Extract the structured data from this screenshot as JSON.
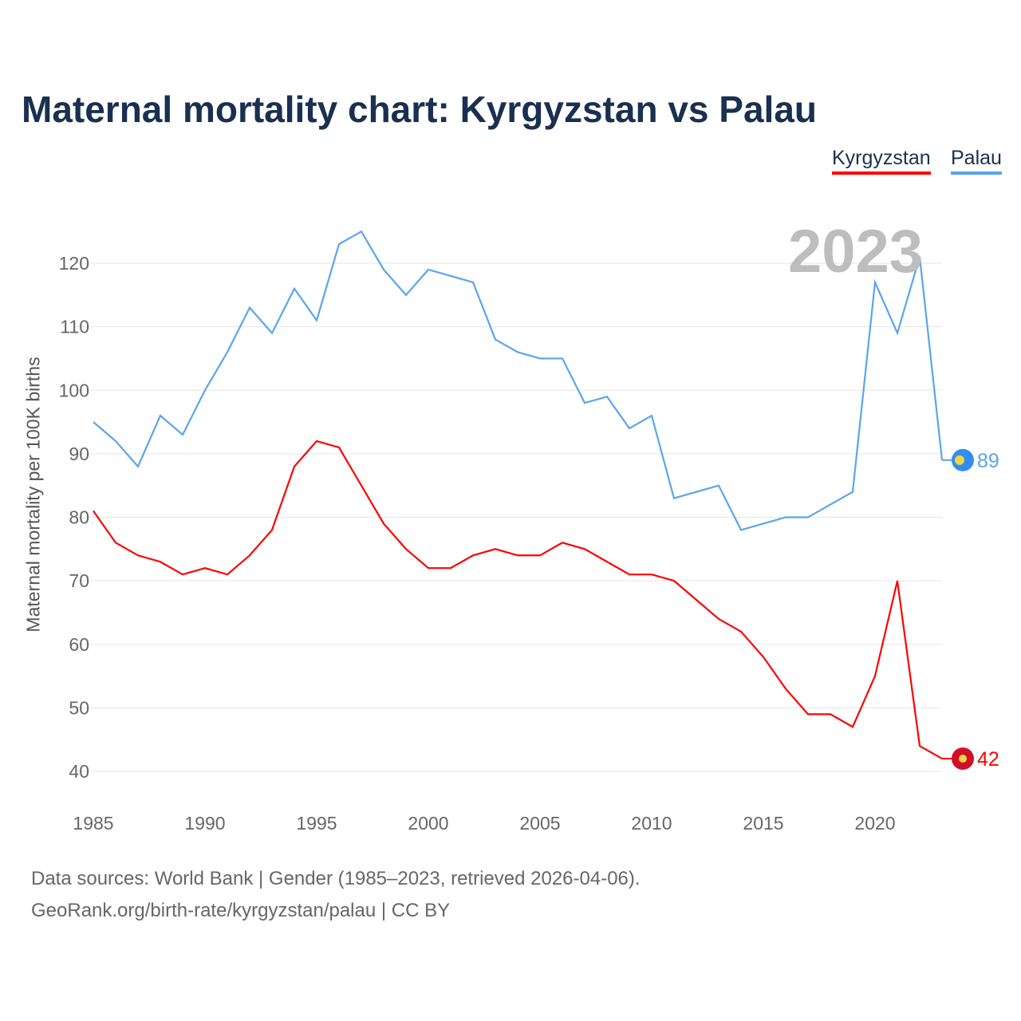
{
  "chart_data": {
    "type": "line",
    "title": "Maternal mortality chart: Kyrgyzstan vs Palau",
    "ylabel": "Maternal mortality per 100K births",
    "xlabel": "",
    "year_label": "2023",
    "xlim": [
      1985,
      2023
    ],
    "ylim": [
      40,
      125
    ],
    "xticks": [
      1985,
      1990,
      1995,
      2000,
      2005,
      2010,
      2015,
      2020
    ],
    "yticks": [
      40,
      50,
      60,
      70,
      80,
      90,
      100,
      110,
      120
    ],
    "legend_position": "top-right",
    "x": [
      1985,
      1986,
      1987,
      1988,
      1989,
      1990,
      1991,
      1992,
      1993,
      1994,
      1995,
      1996,
      1997,
      1998,
      1999,
      2000,
      2001,
      2002,
      2003,
      2004,
      2005,
      2006,
      2007,
      2008,
      2009,
      2010,
      2011,
      2012,
      2013,
      2014,
      2015,
      2016,
      2017,
      2018,
      2019,
      2020,
      2021,
      2022,
      2023
    ],
    "series": [
      {
        "name": "Kyrgyzstan",
        "color": "#ff0000",
        "marker": "#d0102a",
        "end_label": "42",
        "values": [
          81,
          76,
          74,
          73,
          71,
          72,
          71,
          74,
          78,
          88,
          92,
          91,
          85,
          79,
          75,
          72,
          72,
          74,
          75,
          74,
          74,
          76,
          75,
          73,
          71,
          71,
          70,
          67,
          64,
          62,
          58,
          53,
          49,
          49,
          47,
          55,
          70,
          44,
          42
        ]
      },
      {
        "name": "Palau",
        "color": "#5aa5ec",
        "marker": "#2f8ef0",
        "end_label": "89",
        "values": [
          95,
          92,
          88,
          96,
          93,
          100,
          106,
          113,
          109,
          116,
          111,
          123,
          125,
          119,
          115,
          119,
          118,
          117,
          108,
          106,
          105,
          105,
          98,
          99,
          94,
          96,
          83,
          84,
          85,
          78,
          79,
          80,
          80,
          82,
          84,
          117,
          109,
          121,
          89
        ]
      }
    ]
  },
  "footer": {
    "line1": "Data sources: World Bank | Gender (1985–2023, retrieved 2026-04-06).",
    "line2": "GeoRank.org/birth-rate/kyrgyzstan/palau | CC BY"
  }
}
